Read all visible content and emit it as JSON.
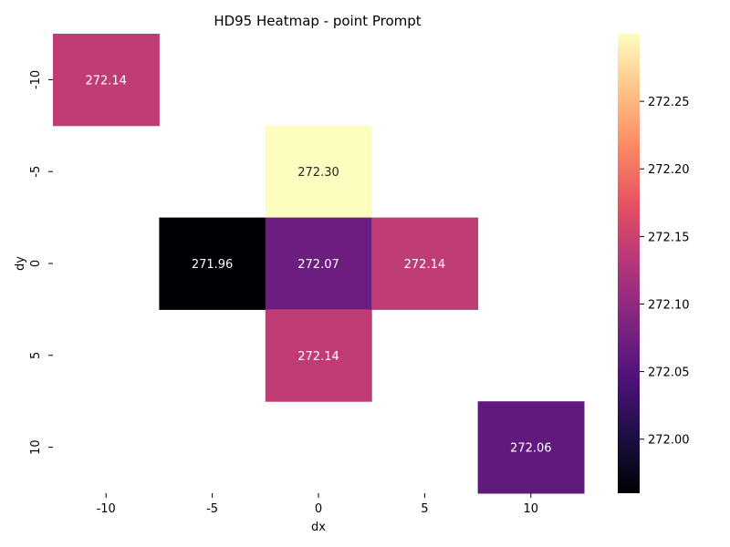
{
  "chart_data": {
    "type": "heatmap",
    "title": "HD95 Heatmap - point Prompt",
    "xlabel": "dx",
    "ylabel": "dy",
    "x_categories": [
      "-10",
      "-5",
      "0",
      "5",
      "10"
    ],
    "y_categories": [
      "-10",
      "-5",
      "0",
      "5",
      "10"
    ],
    "cells": [
      {
        "x": "-10",
        "y": "-10",
        "value": 272.14,
        "label": "272.14"
      },
      {
        "x": "0",
        "y": "-5",
        "value": 272.3,
        "label": "272.30"
      },
      {
        "x": "-5",
        "y": "0",
        "value": 271.96,
        "label": "271.96"
      },
      {
        "x": "0",
        "y": "0",
        "value": 272.07,
        "label": "272.07"
      },
      {
        "x": "5",
        "y": "0",
        "value": 272.14,
        "label": "272.14"
      },
      {
        "x": "0",
        "y": "5",
        "value": 272.14,
        "label": "272.14"
      },
      {
        "x": "10",
        "y": "10",
        "value": 272.06,
        "label": "272.06"
      }
    ],
    "colormap": "magma",
    "colorbar": {
      "min": 271.96,
      "max": 272.3,
      "ticks": [
        "272.00",
        "272.05",
        "272.10",
        "272.15",
        "272.20",
        "272.25"
      ],
      "tick_values": [
        272.0,
        272.05,
        272.1,
        272.15,
        272.2,
        272.25
      ]
    },
    "grid": false,
    "legend": "colorbar-right"
  }
}
